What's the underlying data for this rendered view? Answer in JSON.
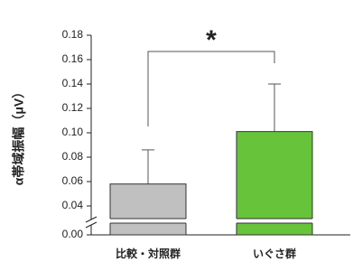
{
  "chart_data": {
    "type": "bar",
    "ylabel": "α帯域振幅（μV）",
    "categories": [
      "比較・対照群",
      "いぐさ群"
    ],
    "values": [
      0.058,
      0.101
    ],
    "errors": [
      0.028,
      0.039
    ],
    "colors": [
      "#c0c0c0",
      "#66c33a"
    ],
    "ylim": [
      0,
      0.18
    ],
    "yticks": [
      {
        "value": 0,
        "label": "0.00"
      },
      {
        "value": 0.04,
        "label": "0.04"
      },
      {
        "value": 0.06,
        "label": "0.06"
      },
      {
        "value": 0.08,
        "label": "0.08"
      },
      {
        "value": 0.1,
        "label": "0.10"
      },
      {
        "value": 0.12,
        "label": "0.12"
      },
      {
        "value": 0.14,
        "label": "0.14"
      },
      {
        "value": 0.16,
        "label": "0.16"
      },
      {
        "value": 0.18,
        "label": "0.18"
      }
    ],
    "annotation": "*",
    "grid": false
  }
}
